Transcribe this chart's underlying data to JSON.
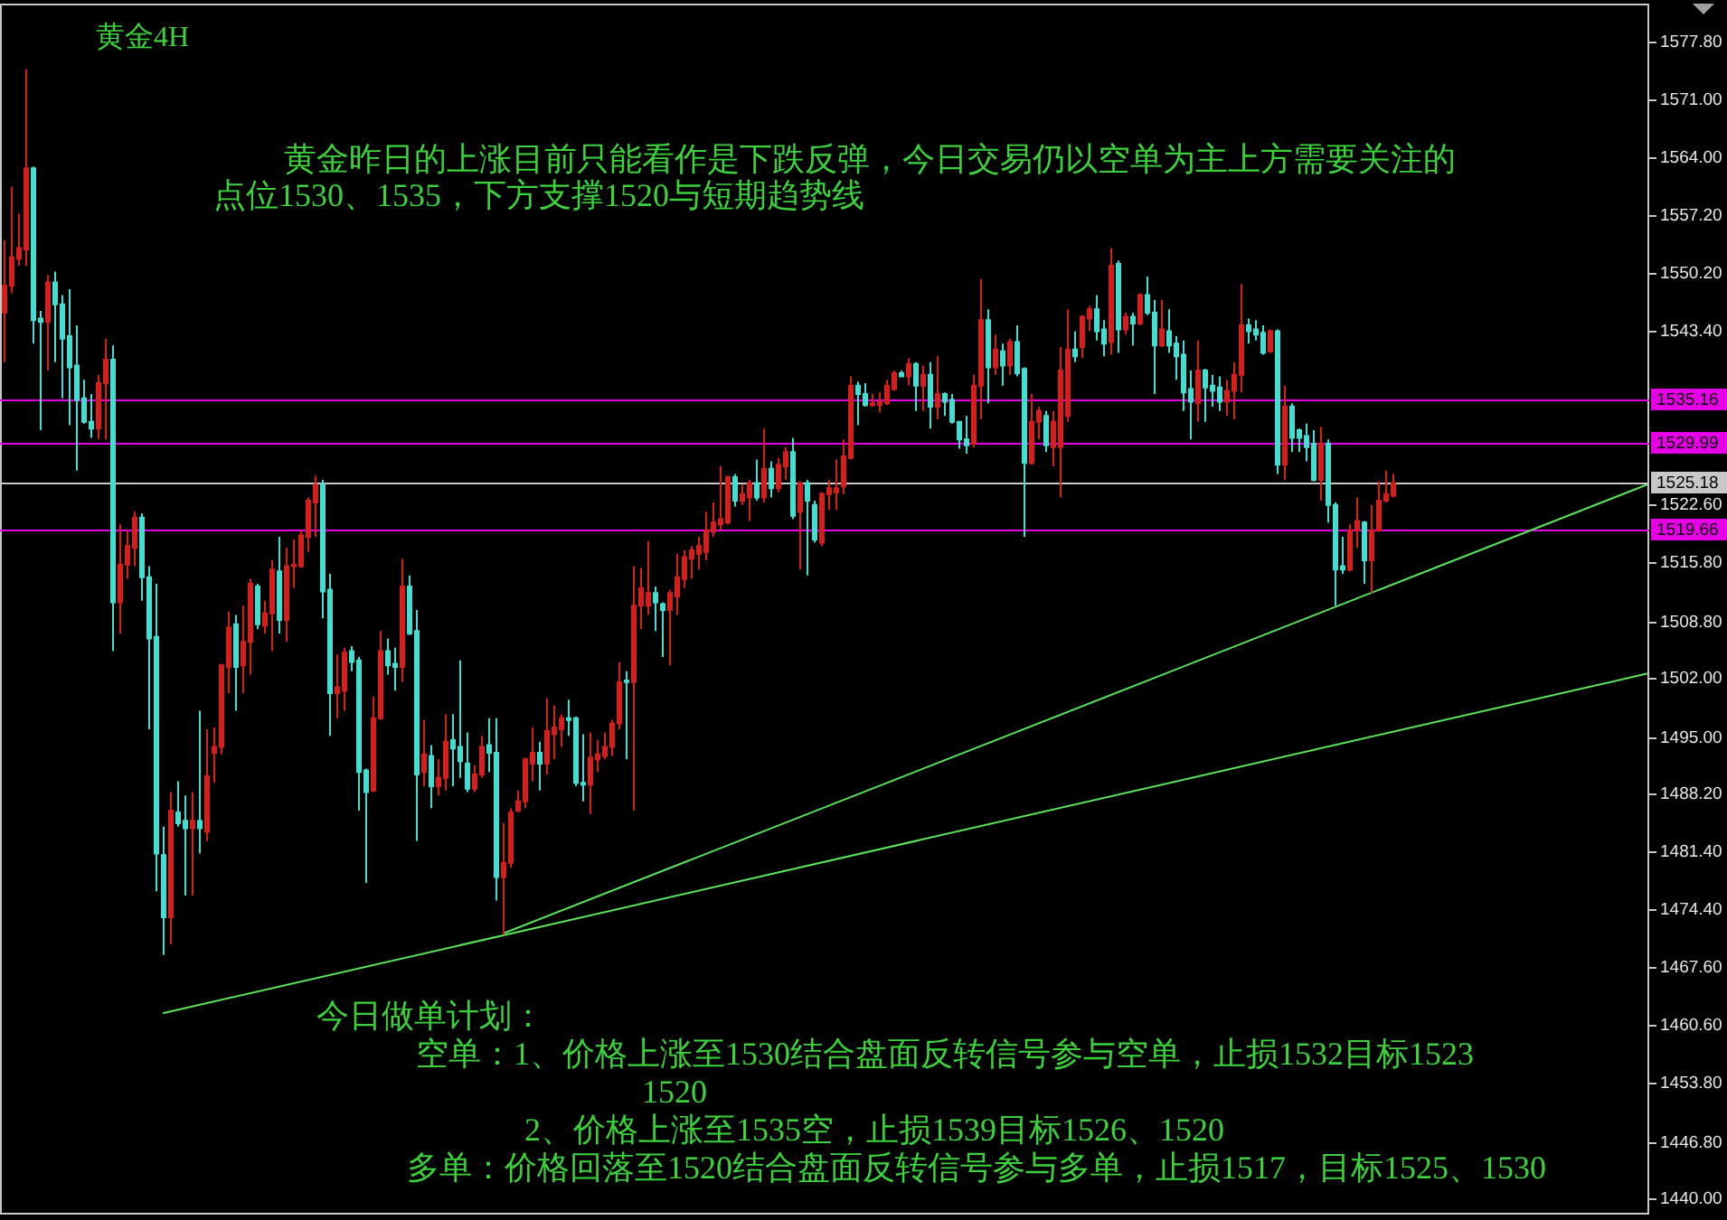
{
  "chart_data": {
    "type": "candlestick",
    "title": "黄金4H",
    "annotations": [
      "黄金昨日的上涨目前只能看作是下跌反弹，今日交易仍以空单为主上方需要关注的",
      "点位1530、1535，下方支撑1520与短期趋势线",
      "今日做单计划：",
      "空单：1、价格上涨至1530结合盘面反转信号参与空单，止损1532目标1523\n1520",
      "2、价格上涨至1535空，止损1539目标1526、1520",
      "多单：价格回落至1520结合盘面反转信号参与多单，止损1517，目标1525、1530"
    ],
    "categories": [
      null,
      null,
      null,
      null,
      null,
      null,
      null,
      null,
      null,
      null,
      null,
      null,
      null,
      null,
      null,
      null,
      null,
      null,
      null,
      null,
      null,
      null,
      null,
      null,
      null,
      null,
      null,
      null,
      null,
      null,
      null,
      null,
      null,
      null,
      null,
      null,
      null,
      null,
      null,
      null,
      null,
      null,
      null,
      null,
      null,
      null,
      null,
      null,
      null,
      null,
      null,
      null,
      null,
      null,
      null,
      null,
      null,
      null,
      null,
      null,
      null,
      null,
      null,
      null,
      null,
      null,
      null,
      null,
      null,
      null,
      null,
      null,
      null,
      null,
      null,
      null,
      null,
      null,
      null,
      null,
      null,
      null,
      null,
      null,
      null,
      null,
      null,
      null,
      null,
      null,
      null,
      null,
      null,
      null,
      null,
      null,
      null,
      null,
      null,
      null,
      null,
      null,
      null,
      null,
      null,
      null,
      null,
      null,
      null,
      null,
      null,
      null,
      null,
      null,
      null,
      null,
      null,
      null,
      null,
      null,
      null,
      null,
      null,
      null,
      null,
      null,
      null,
      null,
      null,
      null,
      null,
      null,
      null,
      null,
      null,
      null,
      null,
      null,
      null,
      null,
      null,
      null,
      null,
      null,
      null,
      null,
      null,
      null,
      null,
      null,
      null,
      null,
      null,
      null,
      null,
      null,
      null,
      null,
      null,
      null,
      null,
      null,
      null,
      null,
      null,
      null,
      null,
      null,
      null,
      null,
      null,
      null,
      null,
      null,
      null,
      null,
      null,
      null,
      null,
      null,
      null,
      null,
      null,
      null,
      null,
      null,
      null,
      null,
      null,
      null,
      null,
      null,
      null,
      null,
      null,
      null,
      null,
      null,
      null,
      null,
      null,
      null,
      null,
      null,
      null,
      null,
      null,
      null,
      null,
      null,
      null,
      null,
      null,
      null,
      null,
      null,
      null,
      null,
      null,
      null,
      null,
      null,
      null,
      null,
      null,
      null,
      null,
      null
    ],
    "ohlc": [
      [
        1545.5,
        1554.1,
        1539.6,
        1548.7
      ],
      [
        1548.7,
        1560.5,
        1547.8,
        1552.1
      ],
      [
        1551.9,
        1557.3,
        1551.1,
        1553.2
      ],
      [
        1553.0,
        1574.5,
        1551.1,
        1562.7
      ],
      [
        1562.7,
        1562.9,
        1541.8,
        1544.6
      ],
      [
        1544.8,
        1545.7,
        1531.5,
        1544.4
      ],
      [
        1544.4,
        1550.0,
        1538.6,
        1549.1
      ],
      [
        1549.1,
        1550.4,
        1539.6,
        1546.5
      ],
      [
        1546.5,
        1547.6,
        1535.3,
        1542.4
      ],
      [
        1542.7,
        1548.3,
        1532.1,
        1539.0
      ],
      [
        1539.2,
        1544.0,
        1526.7,
        1535.1
      ],
      [
        1535.3,
        1537.5,
        1532.3,
        1532.5
      ],
      [
        1532.5,
        1535.8,
        1530.6,
        1531.7
      ],
      [
        1531.7,
        1538.1,
        1530.4,
        1537.1
      ],
      [
        1537.1,
        1542.4,
        1530.4,
        1539.9
      ],
      [
        1539.9,
        1541.6,
        1505.2,
        1511.0
      ],
      [
        1511.0,
        1520.3,
        1507.3,
        1515.5
      ],
      [
        1515.5,
        1519.6,
        1513.8,
        1517.7
      ],
      [
        1517.5,
        1521.8,
        1515.3,
        1521.1
      ],
      [
        1521.1,
        1521.6,
        1511.2,
        1514.0
      ],
      [
        1514.0,
        1515.3,
        1495.9,
        1506.7
      ],
      [
        1506.9,
        1513.2,
        1476.6,
        1481.1
      ],
      [
        1480.9,
        1484.3,
        1469.0,
        1473.5
      ],
      [
        1473.5,
        1488.4,
        1470.3,
        1486.2
      ],
      [
        1486.0,
        1489.7,
        1484.3,
        1484.7
      ],
      [
        1485.0,
        1488.0,
        1476.1,
        1484.1
      ],
      [
        1484.1,
        1488.4,
        1476.1,
        1485.0
      ],
      [
        1485.0,
        1498.1,
        1481.1,
        1484.1
      ],
      [
        1483.7,
        1495.9,
        1482.6,
        1490.3
      ],
      [
        1493.1,
        1496.1,
        1489.5,
        1493.8
      ],
      [
        1493.8,
        1503.7,
        1492.9,
        1503.5
      ],
      [
        1503.3,
        1509.9,
        1500.2,
        1508.0
      ],
      [
        1508.4,
        1509.5,
        1498.1,
        1503.3
      ],
      [
        1503.5,
        1510.6,
        1500.2,
        1506.3
      ],
      [
        1506.3,
        1513.8,
        1502.4,
        1513.2
      ],
      [
        1512.9,
        1513.2,
        1507.8,
        1508.4
      ],
      [
        1508.2,
        1511.2,
        1507.3,
        1509.7
      ],
      [
        1509.7,
        1516.0,
        1505.2,
        1514.9
      ],
      [
        1514.7,
        1518.8,
        1507.3,
        1508.9
      ],
      [
        1508.9,
        1517.5,
        1506.3,
        1515.3
      ],
      [
        1515.3,
        1518.5,
        1512.7,
        1515.5
      ],
      [
        1515.3,
        1519.6,
        1515.1,
        1519.0
      ],
      [
        1518.8,
        1523.5,
        1517.0,
        1523.1
      ],
      [
        1522.9,
        1526.1,
        1518.8,
        1525.0
      ],
      [
        1525.0,
        1525.6,
        1509.1,
        1512.3
      ],
      [
        1512.5,
        1514.4,
        1495.1,
        1500.2
      ],
      [
        1500.2,
        1504.8,
        1497.2,
        1500.9
      ],
      [
        1500.5,
        1505.6,
        1498.1,
        1505.0
      ],
      [
        1505.2,
        1505.8,
        1502.8,
        1503.9
      ],
      [
        1504.1,
        1504.5,
        1486.2,
        1490.8
      ],
      [
        1491.0,
        1491.2,
        1477.6,
        1488.4
      ],
      [
        1488.6,
        1499.8,
        1488.4,
        1497.2
      ],
      [
        1497.2,
        1507.6,
        1497.0,
        1505.2
      ],
      [
        1505.2,
        1506.7,
        1502.4,
        1503.5
      ],
      [
        1503.7,
        1505.6,
        1500.5,
        1503.3
      ],
      [
        1503.3,
        1516.2,
        1501.5,
        1512.9
      ],
      [
        1512.9,
        1514.2,
        1507.1,
        1507.3
      ],
      [
        1507.6,
        1510.1,
        1482.6,
        1490.5
      ],
      [
        1490.8,
        1497.0,
        1489.1,
        1492.9
      ],
      [
        1492.7,
        1494.0,
        1486.5,
        1489.1
      ],
      [
        1489.1,
        1492.3,
        1488.0,
        1490.1
      ],
      [
        1490.1,
        1497.7,
        1488.6,
        1494.4
      ],
      [
        1494.6,
        1497.7,
        1489.1,
        1493.6
      ],
      [
        1493.8,
        1504.1,
        1490.1,
        1492.1
      ],
      [
        1491.8,
        1495.5,
        1488.4,
        1488.8
      ],
      [
        1488.8,
        1491.6,
        1488.4,
        1490.5
      ],
      [
        1490.5,
        1495.1,
        1490.1,
        1493.8
      ],
      [
        1494.0,
        1497.2,
        1490.8,
        1493.1
      ],
      [
        1493.1,
        1497.2,
        1475.5,
        1478.3
      ],
      [
        1478.3,
        1484.7,
        1471.4,
        1480.0
      ],
      [
        1480.0,
        1486.5,
        1479.4,
        1486.0
      ],
      [
        1486.2,
        1488.6,
        1486.0,
        1487.3
      ],
      [
        1487.3,
        1492.5,
        1486.5,
        1492.3
      ],
      [
        1491.8,
        1496.1,
        1489.7,
        1493.1
      ],
      [
        1493.1,
        1494.4,
        1488.6,
        1491.8
      ],
      [
        1491.8,
        1499.6,
        1490.5,
        1495.7
      ],
      [
        1495.3,
        1498.7,
        1492.3,
        1496.1
      ],
      [
        1495.9,
        1497.7,
        1493.8,
        1497.2
      ],
      [
        1497.2,
        1499.4,
        1495.1,
        1497.0
      ],
      [
        1497.2,
        1497.4,
        1489.1,
        1489.5
      ],
      [
        1489.5,
        1495.3,
        1487.3,
        1489.3
      ],
      [
        1489.3,
        1495.5,
        1485.8,
        1492.5
      ],
      [
        1492.3,
        1494.6,
        1490.8,
        1492.9
      ],
      [
        1492.7,
        1495.5,
        1492.3,
        1493.8
      ],
      [
        1493.8,
        1497.0,
        1492.7,
        1496.6
      ],
      [
        1496.6,
        1503.9,
        1495.9,
        1501.5
      ],
      [
        1501.7,
        1502.8,
        1492.3,
        1501.5
      ],
      [
        1501.5,
        1515.3,
        1486.2,
        1510.6
      ],
      [
        1510.6,
        1515.1,
        1507.8,
        1512.7
      ],
      [
        1510.6,
        1518.3,
        1509.5,
        1512.1
      ],
      [
        1512.1,
        1512.9,
        1507.6,
        1511.0
      ],
      [
        1510.8,
        1511.0,
        1504.5,
        1510.1
      ],
      [
        1510.1,
        1512.5,
        1503.5,
        1512.1
      ],
      [
        1511.7,
        1516.8,
        1509.5,
        1514.0
      ],
      [
        1513.8,
        1517.2,
        1512.7,
        1516.4
      ],
      [
        1516.2,
        1517.7,
        1513.8,
        1517.2
      ],
      [
        1516.8,
        1518.8,
        1514.9,
        1517.7
      ],
      [
        1517.0,
        1521.8,
        1516.0,
        1519.6
      ],
      [
        1519.4,
        1522.9,
        1518.8,
        1520.5
      ],
      [
        1520.3,
        1527.2,
        1519.6,
        1520.9
      ],
      [
        1520.5,
        1526.1,
        1520.3,
        1525.9
      ],
      [
        1525.9,
        1526.3,
        1522.4,
        1523.1
      ],
      [
        1523.1,
        1525.0,
        1522.6,
        1523.9
      ],
      [
        1523.5,
        1525.6,
        1520.7,
        1525.2
      ],
      [
        1525.2,
        1528.0,
        1523.1,
        1523.5
      ],
      [
        1523.5,
        1531.7,
        1522.9,
        1526.9
      ],
      [
        1526.9,
        1527.8,
        1523.5,
        1524.6
      ],
      [
        1524.6,
        1528.2,
        1524.1,
        1527.4
      ],
      [
        1527.2,
        1529.5,
        1525.6,
        1528.9
      ],
      [
        1528.9,
        1530.6,
        1520.9,
        1521.3
      ],
      [
        1521.8,
        1525.4,
        1514.9,
        1525.2
      ],
      [
        1525.2,
        1525.6,
        1514.2,
        1523.1
      ],
      [
        1522.6,
        1523.1,
        1518.1,
        1518.5
      ],
      [
        1518.1,
        1524.1,
        1517.7,
        1523.9
      ],
      [
        1523.9,
        1525.6,
        1522.0,
        1524.6
      ],
      [
        1524.1,
        1528.0,
        1522.0,
        1524.6
      ],
      [
        1524.8,
        1530.4,
        1523.9,
        1528.4
      ],
      [
        1528.2,
        1537.9,
        1528.0,
        1536.8
      ],
      [
        1536.8,
        1537.3,
        1532.1,
        1535.8
      ],
      [
        1535.8,
        1537.1,
        1534.3,
        1534.5
      ],
      [
        1534.5,
        1535.8,
        1534.3,
        1534.7
      ],
      [
        1534.5,
        1536.0,
        1533.6,
        1534.9
      ],
      [
        1534.7,
        1537.5,
        1534.5,
        1536.8
      ],
      [
        1536.4,
        1538.6,
        1536.2,
        1538.3
      ],
      [
        1538.3,
        1538.6,
        1537.9,
        1537.9
      ],
      [
        1537.9,
        1540.1,
        1536.8,
        1539.4
      ],
      [
        1539.4,
        1539.6,
        1533.8,
        1536.8
      ],
      [
        1536.8,
        1539.2,
        1533.8,
        1538.1
      ],
      [
        1538.1,
        1539.6,
        1531.7,
        1534.3
      ],
      [
        1534.3,
        1540.3,
        1532.8,
        1535.8
      ],
      [
        1535.8,
        1536.0,
        1533.2,
        1534.9
      ],
      [
        1535.1,
        1535.8,
        1532.3,
        1532.5
      ],
      [
        1532.5,
        1532.5,
        1529.3,
        1530.4
      ],
      [
        1530.4,
        1533.2,
        1528.7,
        1529.7
      ],
      [
        1529.9,
        1538.1,
        1529.5,
        1536.8
      ],
      [
        1536.8,
        1549.5,
        1532.8,
        1544.6
      ],
      [
        1544.6,
        1545.9,
        1534.7,
        1539.0
      ],
      [
        1539.0,
        1542.9,
        1538.1,
        1541.1
      ],
      [
        1540.9,
        1541.8,
        1536.8,
        1539.2
      ],
      [
        1539.2,
        1542.4,
        1538.1,
        1542.0
      ],
      [
        1542.0,
        1544.0,
        1537.9,
        1538.3
      ],
      [
        1538.8,
        1539.0,
        1518.8,
        1527.6
      ],
      [
        1527.6,
        1535.8,
        1527.4,
        1532.5
      ],
      [
        1532.5,
        1534.3,
        1530.4,
        1533.8
      ],
      [
        1533.2,
        1533.8,
        1528.9,
        1529.7
      ],
      [
        1529.5,
        1533.8,
        1527.2,
        1532.5
      ],
      [
        1529.5,
        1541.4,
        1523.5,
        1538.6
      ],
      [
        1533.2,
        1545.9,
        1532.5,
        1541.1
      ],
      [
        1541.1,
        1543.3,
        1539.6,
        1540.3
      ],
      [
        1541.4,
        1545.2,
        1540.1,
        1545.0
      ],
      [
        1544.8,
        1546.3,
        1543.3,
        1545.9
      ],
      [
        1545.9,
        1547.6,
        1542.2,
        1543.3
      ],
      [
        1543.5,
        1544.6,
        1540.3,
        1541.8
      ],
      [
        1542.0,
        1553.2,
        1540.5,
        1551.1
      ],
      [
        1551.3,
        1551.7,
        1540.7,
        1543.5
      ],
      [
        1543.5,
        1545.5,
        1542.9,
        1545.0
      ],
      [
        1545.0,
        1545.5,
        1541.6,
        1544.2
      ],
      [
        1544.2,
        1547.8,
        1544.0,
        1547.6
      ],
      [
        1547.6,
        1549.8,
        1545.2,
        1545.5
      ],
      [
        1545.5,
        1547.0,
        1535.8,
        1541.6
      ],
      [
        1541.6,
        1547.0,
        1541.4,
        1543.5
      ],
      [
        1543.3,
        1545.9,
        1540.7,
        1541.6
      ],
      [
        1541.8,
        1542.7,
        1537.5,
        1540.3
      ],
      [
        1540.5,
        1542.2,
        1533.8,
        1536.0
      ],
      [
        1536.4,
        1538.6,
        1530.4,
        1534.9
      ],
      [
        1534.7,
        1542.2,
        1532.5,
        1538.6
      ],
      [
        1538.6,
        1538.8,
        1532.5,
        1536.6
      ],
      [
        1536.8,
        1538.1,
        1534.3,
        1536.2
      ],
      [
        1536.6,
        1537.9,
        1533.8,
        1534.9
      ],
      [
        1534.9,
        1537.5,
        1533.2,
        1536.2
      ],
      [
        1536.2,
        1539.6,
        1532.8,
        1538.1
      ],
      [
        1538.1,
        1548.9,
        1536.0,
        1544.0
      ],
      [
        1544.0,
        1544.8,
        1541.8,
        1543.3
      ],
      [
        1543.5,
        1544.6,
        1542.2,
        1542.9
      ],
      [
        1543.1,
        1544.0,
        1540.5,
        1540.7
      ],
      [
        1540.9,
        1543.5,
        1540.7,
        1543.3
      ],
      [
        1543.3,
        1543.5,
        1526.3,
        1527.4
      ],
      [
        1527.4,
        1536.8,
        1525.6,
        1534.3
      ],
      [
        1534.3,
        1534.7,
        1528.9,
        1530.6
      ],
      [
        1531.5,
        1531.7,
        1528.9,
        1530.6
      ],
      [
        1530.8,
        1532.3,
        1527.8,
        1529.5
      ],
      [
        1529.9,
        1531.5,
        1525.4,
        1525.6
      ],
      [
        1525.6,
        1531.9,
        1523.1,
        1529.9
      ],
      [
        1529.9,
        1530.4,
        1520.5,
        1522.6
      ],
      [
        1522.6,
        1522.9,
        1510.6,
        1514.9
      ],
      [
        1515.3,
        1518.8,
        1514.4,
        1514.9
      ],
      [
        1514.9,
        1520.3,
        1514.7,
        1519.6
      ],
      [
        1519.6,
        1523.5,
        1517.5,
        1520.7
      ],
      [
        1520.5,
        1520.7,
        1513.2,
        1516.0
      ],
      [
        1516.0,
        1522.6,
        1512.1,
        1519.6
      ],
      [
        1519.6,
        1525.4,
        1519.4,
        1523.1
      ],
      [
        1523.1,
        1526.7,
        1522.9,
        1523.9
      ],
      [
        1523.7,
        1526.3,
        1523.5,
        1525.2
      ],
      null,
      null,
      null,
      null,
      null,
      null,
      null,
      null,
      null,
      null,
      null,
      null,
      null,
      null,
      null,
      null,
      null,
      null,
      null,
      null,
      null,
      null,
      null,
      null,
      null,
      null,
      null,
      null,
      null,
      null,
      null,
      null,
      null,
      null,
      null
    ],
    "colors": [
      "#d41f1f",
      "#d41f1f",
      "#d41f1f",
      "#d41f1f",
      "#45ddd0",
      "#45ddd0",
      "#d41f1f",
      "#45ddd0",
      "#45ddd0",
      "#45ddd0",
      "#45ddd0",
      "#45ddd0",
      "#45ddd0",
      "#d41f1f",
      "#d41f1f",
      "#45ddd0",
      "#d41f1f",
      "#d41f1f",
      "#d41f1f",
      "#45ddd0",
      "#45ddd0",
      "#45ddd0",
      "#45ddd0",
      "#d41f1f",
      "#45ddd0",
      "#45ddd0",
      "#d41f1f",
      "#45ddd0",
      "#d41f1f",
      "#d41f1f",
      "#d41f1f",
      "#d41f1f",
      "#45ddd0",
      "#d41f1f",
      "#d41f1f",
      "#45ddd0",
      "#d41f1f",
      "#d41f1f",
      "#45ddd0",
      "#d41f1f",
      "#d41f1f",
      "#d41f1f",
      "#d41f1f",
      "#d41f1f",
      "#45ddd0",
      "#45ddd0",
      "#d41f1f",
      "#d41f1f",
      "#45ddd0",
      "#45ddd0",
      "#45ddd0",
      "#d41f1f",
      "#d41f1f",
      "#45ddd0",
      "#45ddd0",
      "#d41f1f",
      "#45ddd0",
      "#45ddd0",
      "#d41f1f",
      "#45ddd0",
      "#d41f1f",
      "#d41f1f",
      "#45ddd0",
      "#45ddd0",
      "#45ddd0",
      "#d41f1f",
      "#d41f1f",
      "#45ddd0",
      "#45ddd0",
      "#d41f1f",
      "#d41f1f",
      "#d41f1f",
      "#d41f1f",
      "#d41f1f",
      "#45ddd0",
      "#d41f1f",
      "#d41f1f",
      "#d41f1f",
      "#45ddd0",
      "#45ddd0",
      "#45ddd0",
      "#d41f1f",
      "#d41f1f",
      "#d41f1f",
      "#d41f1f",
      "#d41f1f",
      "#45ddd0",
      "#d41f1f",
      "#d41f1f",
      "#d41f1f",
      "#45ddd0",
      "#45ddd0",
      "#d41f1f",
      "#d41f1f",
      "#d41f1f",
      "#d41f1f",
      "#d41f1f",
      "#d41f1f",
      "#d41f1f",
      "#d41f1f",
      "#d41f1f",
      "#45ddd0",
      "#d41f1f",
      "#d41f1f",
      "#45ddd0",
      "#d41f1f",
      "#45ddd0",
      "#d41f1f",
      "#d41f1f",
      "#45ddd0",
      "#d41f1f",
      "#45ddd0",
      "#45ddd0",
      "#d41f1f",
      "#d41f1f",
      "#d41f1f",
      "#d41f1f",
      "#d41f1f",
      "#45ddd0",
      "#45ddd0",
      "#d41f1f",
      "#d41f1f",
      "#d41f1f",
      "#d41f1f",
      "#45ddd0",
      "#d41f1f",
      "#45ddd0",
      "#d41f1f",
      "#45ddd0",
      "#d41f1f",
      "#45ddd0",
      "#45ddd0",
      "#45ddd0",
      "#45ddd0",
      "#d41f1f",
      "#d41f1f",
      "#45ddd0",
      "#d41f1f",
      "#45ddd0",
      "#d41f1f",
      "#45ddd0",
      "#45ddd0",
      "#d41f1f",
      "#d41f1f",
      "#45ddd0",
      "#d41f1f",
      "#d41f1f",
      "#d41f1f",
      "#45ddd0",
      "#d41f1f",
      "#d41f1f",
      "#45ddd0",
      "#45ddd0",
      "#d41f1f",
      "#45ddd0",
      "#d41f1f",
      "#45ddd0",
      "#d41f1f",
      "#45ddd0",
      "#45ddd0",
      "#d41f1f",
      "#45ddd0",
      "#45ddd0",
      "#45ddd0",
      "#45ddd0",
      "#d41f1f",
      "#45ddd0",
      "#45ddd0",
      "#45ddd0",
      "#d41f1f",
      "#d41f1f",
      "#d41f1f",
      "#45ddd0",
      "#45ddd0",
      "#45ddd0",
      "#d41f1f",
      "#45ddd0",
      "#d41f1f",
      "#45ddd0",
      "#45ddd0",
      "#45ddd0",
      "#45ddd0",
      "#d41f1f",
      "#45ddd0",
      "#45ddd0",
      "#45ddd0",
      "#d41f1f",
      "#d41f1f",
      "#45ddd0",
      "#d41f1f",
      "#d41f1f",
      "#d41f1f",
      "#d41f1f",
      null,
      null,
      null,
      null,
      null,
      null,
      null,
      null,
      null,
      null,
      null,
      null,
      null,
      null,
      null,
      null,
      null,
      null,
      null,
      null,
      null,
      null,
      null,
      null,
      null,
      null,
      null,
      null,
      null,
      null,
      null,
      null,
      null,
      null,
      null
    ],
    "series": [
      {
        "type": "line",
        "color": "#5ae65a",
        "values": [
          null,
          null,
          null,
          null,
          null,
          null,
          null,
          null,
          null,
          null,
          null,
          null,
          null,
          null,
          null,
          null,
          null,
          null,
          null,
          null,
          null,
          null,
          1462.1,
          null,
          null,
          null,
          null,
          null,
          null,
          null,
          null,
          null,
          null,
          null,
          null,
          null,
          null,
          null,
          null,
          null,
          null,
          null,
          null,
          null,
          null,
          null,
          null,
          null,
          null,
          null,
          null,
          null,
          null,
          null,
          null,
          null,
          null,
          null,
          null,
          null,
          null,
          null,
          null,
          null,
          null,
          null,
          null,
          null,
          null,
          null,
          null,
          null,
          null,
          null,
          null,
          null,
          null,
          null,
          null,
          null,
          null,
          null,
          null,
          null,
          null,
          null,
          null,
          null,
          null,
          null,
          null,
          null,
          null,
          null,
          null,
          null,
          null,
          null,
          null,
          null,
          null,
          null,
          null,
          null,
          null,
          null,
          null,
          null,
          null,
          null,
          null,
          null,
          null,
          null,
          null,
          null,
          null,
          null,
          null,
          null,
          null,
          null,
          null,
          null,
          null,
          null,
          null,
          null,
          null,
          null,
          null,
          null,
          null,
          null,
          null,
          null,
          null,
          null,
          null,
          null,
          null,
          null,
          null,
          null,
          null,
          null,
          null,
          null,
          null,
          null,
          null,
          null,
          null,
          null,
          null,
          null,
          null,
          null,
          null,
          null,
          null,
          null,
          null,
          null,
          null,
          null,
          null,
          null,
          null,
          null,
          null,
          null,
          null,
          null,
          null,
          null,
          null,
          null,
          null,
          null,
          null,
          null,
          null,
          null,
          null,
          null,
          null,
          null,
          null,
          null,
          null,
          null,
          null,
          null,
          null,
          null,
          null,
          null,
          null,
          null,
          null,
          null,
          null,
          null,
          null,
          null,
          null,
          null,
          null,
          null,
          null,
          null,
          null,
          null,
          null,
          null,
          null,
          null,
          null,
          null,
          null,
          null,
          null,
          null,
          null,
          null,
          null,
          1502.5
        ]
      },
      {
        "type": "line",
        "color": "#5ae65a",
        "values": [
          null,
          null,
          null,
          null,
          null,
          null,
          null,
          null,
          null,
          null,
          null,
          null,
          null,
          null,
          null,
          null,
          null,
          null,
          null,
          null,
          null,
          null,
          null,
          null,
          null,
          null,
          null,
          null,
          null,
          null,
          null,
          null,
          null,
          null,
          null,
          null,
          null,
          null,
          null,
          null,
          null,
          null,
          null,
          null,
          null,
          null,
          null,
          null,
          null,
          null,
          null,
          null,
          null,
          null,
          null,
          null,
          null,
          null,
          null,
          null,
          null,
          null,
          null,
          null,
          null,
          null,
          null,
          null,
          null,
          1471.6,
          null,
          null,
          null,
          null,
          null,
          null,
          null,
          null,
          null,
          null,
          null,
          null,
          null,
          null,
          null,
          null,
          null,
          null,
          null,
          null,
          null,
          null,
          null,
          null,
          null,
          null,
          null,
          null,
          null,
          null,
          null,
          null,
          null,
          null,
          null,
          null,
          null,
          null,
          null,
          null,
          null,
          null,
          null,
          null,
          null,
          null,
          null,
          null,
          null,
          null,
          null,
          null,
          null,
          null,
          null,
          null,
          null,
          null,
          null,
          null,
          null,
          null,
          null,
          null,
          null,
          null,
          null,
          null,
          null,
          null,
          null,
          null,
          null,
          null,
          null,
          null,
          null,
          null,
          null,
          null,
          null,
          null,
          null,
          null,
          null,
          null,
          null,
          null,
          null,
          null,
          null,
          null,
          null,
          null,
          null,
          null,
          null,
          null,
          null,
          null,
          null,
          null,
          null,
          null,
          null,
          null,
          null,
          null,
          null,
          null,
          null,
          null,
          null,
          null,
          null,
          null,
          null,
          null,
          null,
          null,
          null,
          null,
          null,
          null,
          null,
          null,
          null,
          null,
          null,
          null,
          null,
          null,
          null,
          null,
          null,
          null,
          null,
          null,
          null,
          null,
          null,
          null,
          null,
          null,
          null,
          null,
          null,
          null,
          null,
          null,
          null,
          null,
          null,
          null,
          null,
          null,
          null,
          1525.0
        ]
      }
    ],
    "ylim": [
      1438.1,
      1582.3
    ],
    "yticks": [
      {
        "value": 1440,
        "label": "1440.00"
      },
      {
        "value": 1446.8,
        "label": "1446.80"
      },
      {
        "value": 1453.8,
        "label": "1453.80"
      },
      {
        "value": 1460.6,
        "label": "1460.60"
      },
      {
        "value": 1467.6,
        "label": "1467.60"
      },
      {
        "value": 1474.4,
        "label": "1474.40"
      },
      {
        "value": 1481.4,
        "label": "1481.40"
      },
      {
        "value": 1488.2,
        "label": "1488.20"
      },
      {
        "value": 1495,
        "label": "1495.00"
      },
      {
        "value": 1502,
        "label": "1502.00"
      },
      {
        "value": 1508.8,
        "label": "1508.80"
      },
      {
        "value": 1515.8,
        "label": "1515.80"
      },
      {
        "value": 1522.6,
        "label": "1522.60"
      },
      {
        "value": 1543.4,
        "label": "1543.40"
      },
      {
        "value": 1550.2,
        "label": "1550.20"
      },
      {
        "value": 1557.2,
        "label": "1557.20"
      },
      {
        "value": 1564,
        "label": "1564.00"
      },
      {
        "value": 1571,
        "label": "1571.00"
      },
      {
        "value": 1577.8,
        "label": "1577.80"
      }
    ],
    "tick_labels": "y",
    "ref_lines": [
      {
        "axis": "y",
        "value": 1535.16,
        "label": "1535.16",
        "color": "#e600e6"
      },
      {
        "axis": "y",
        "value": 1529.99,
        "label": "1529.99",
        "color": "#e600e6"
      },
      {
        "axis": "y",
        "value": 1525.18,
        "label": "1525.18",
        "color": "#c8c8c8"
      },
      {
        "axis": "y",
        "value": 1519.66,
        "label": "1519.66",
        "color": "#e600e6"
      }
    ]
  }
}
